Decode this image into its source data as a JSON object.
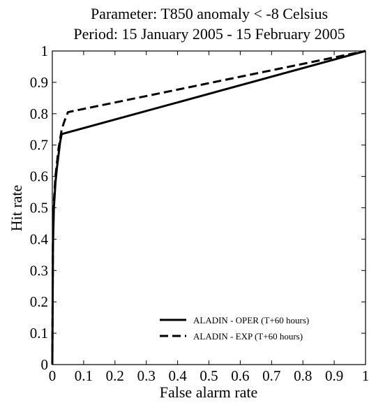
{
  "chart_data": {
    "type": "line",
    "title": "Parameter: T850 anomaly < -8 Celsius",
    "subtitle": "Period: 15 January 2005 - 15 February 2005",
    "xlabel": "False alarm rate",
    "ylabel": "Hit rate",
    "xlim": [
      0,
      1
    ],
    "ylim": [
      0,
      1
    ],
    "xticks": [
      "0",
      "0.1",
      "0.2",
      "0.3",
      "0.4",
      "0.5",
      "0.6",
      "0.7",
      "0.8",
      "0.9",
      "1"
    ],
    "yticks": [
      "0",
      "0.1",
      "0.2",
      "0.3",
      "0.4",
      "0.5",
      "0.6",
      "0.7",
      "0.8",
      "0.9",
      "1"
    ],
    "grid": false,
    "legend_position": "bottom-right",
    "series": [
      {
        "name": "ALADIN - OPER (T+60 hours)",
        "style": "solid",
        "x": [
          0,
          0.002,
          0.005,
          0.01,
          0.015,
          0.02,
          0.025,
          0.03,
          1.0
        ],
        "y": [
          0,
          0.38,
          0.5,
          0.58,
          0.63,
          0.67,
          0.71,
          0.735,
          1.0
        ]
      },
      {
        "name": "ALADIN - EXP (T+60 hours)",
        "style": "dashed",
        "x": [
          0,
          0.002,
          0.005,
          0.01,
          0.02,
          0.03,
          0.04,
          0.05,
          1.0
        ],
        "y": [
          0,
          0.4,
          0.52,
          0.6,
          0.69,
          0.75,
          0.78,
          0.805,
          1.0
        ]
      }
    ]
  }
}
